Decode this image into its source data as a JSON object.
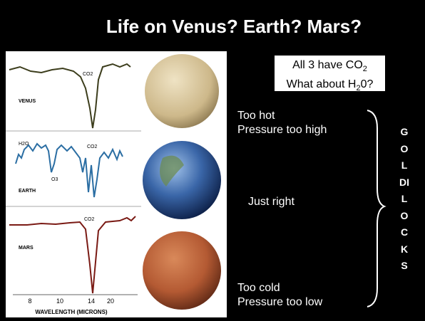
{
  "title": "Life on Venus? Earth? Mars?",
  "box": {
    "line1": {
      "text": "All 3 have CO",
      "sub": "2"
    },
    "line2": {
      "text": "What about H",
      "sub": "2",
      "after": "0?"
    }
  },
  "spectra": {
    "venus": {
      "label": "VENUS",
      "co2": "CO2"
    },
    "earth": {
      "label": "EARTH",
      "h2o": "H2O",
      "o3": "O3",
      "co2": "CO2"
    },
    "mars": {
      "label": "MARS",
      "co2": "CO2"
    },
    "ticks": [
      "8",
      "10",
      "14",
      "20"
    ],
    "axis_label": "WAVELENGTH (MICRONS)"
  },
  "notes": {
    "venus": [
      "Too hot",
      "Pressure too high"
    ],
    "earth": "Just right",
    "mars": [
      "Too cold",
      "Pressure too low"
    ]
  },
  "side_label": "GOLDILOCKS"
}
